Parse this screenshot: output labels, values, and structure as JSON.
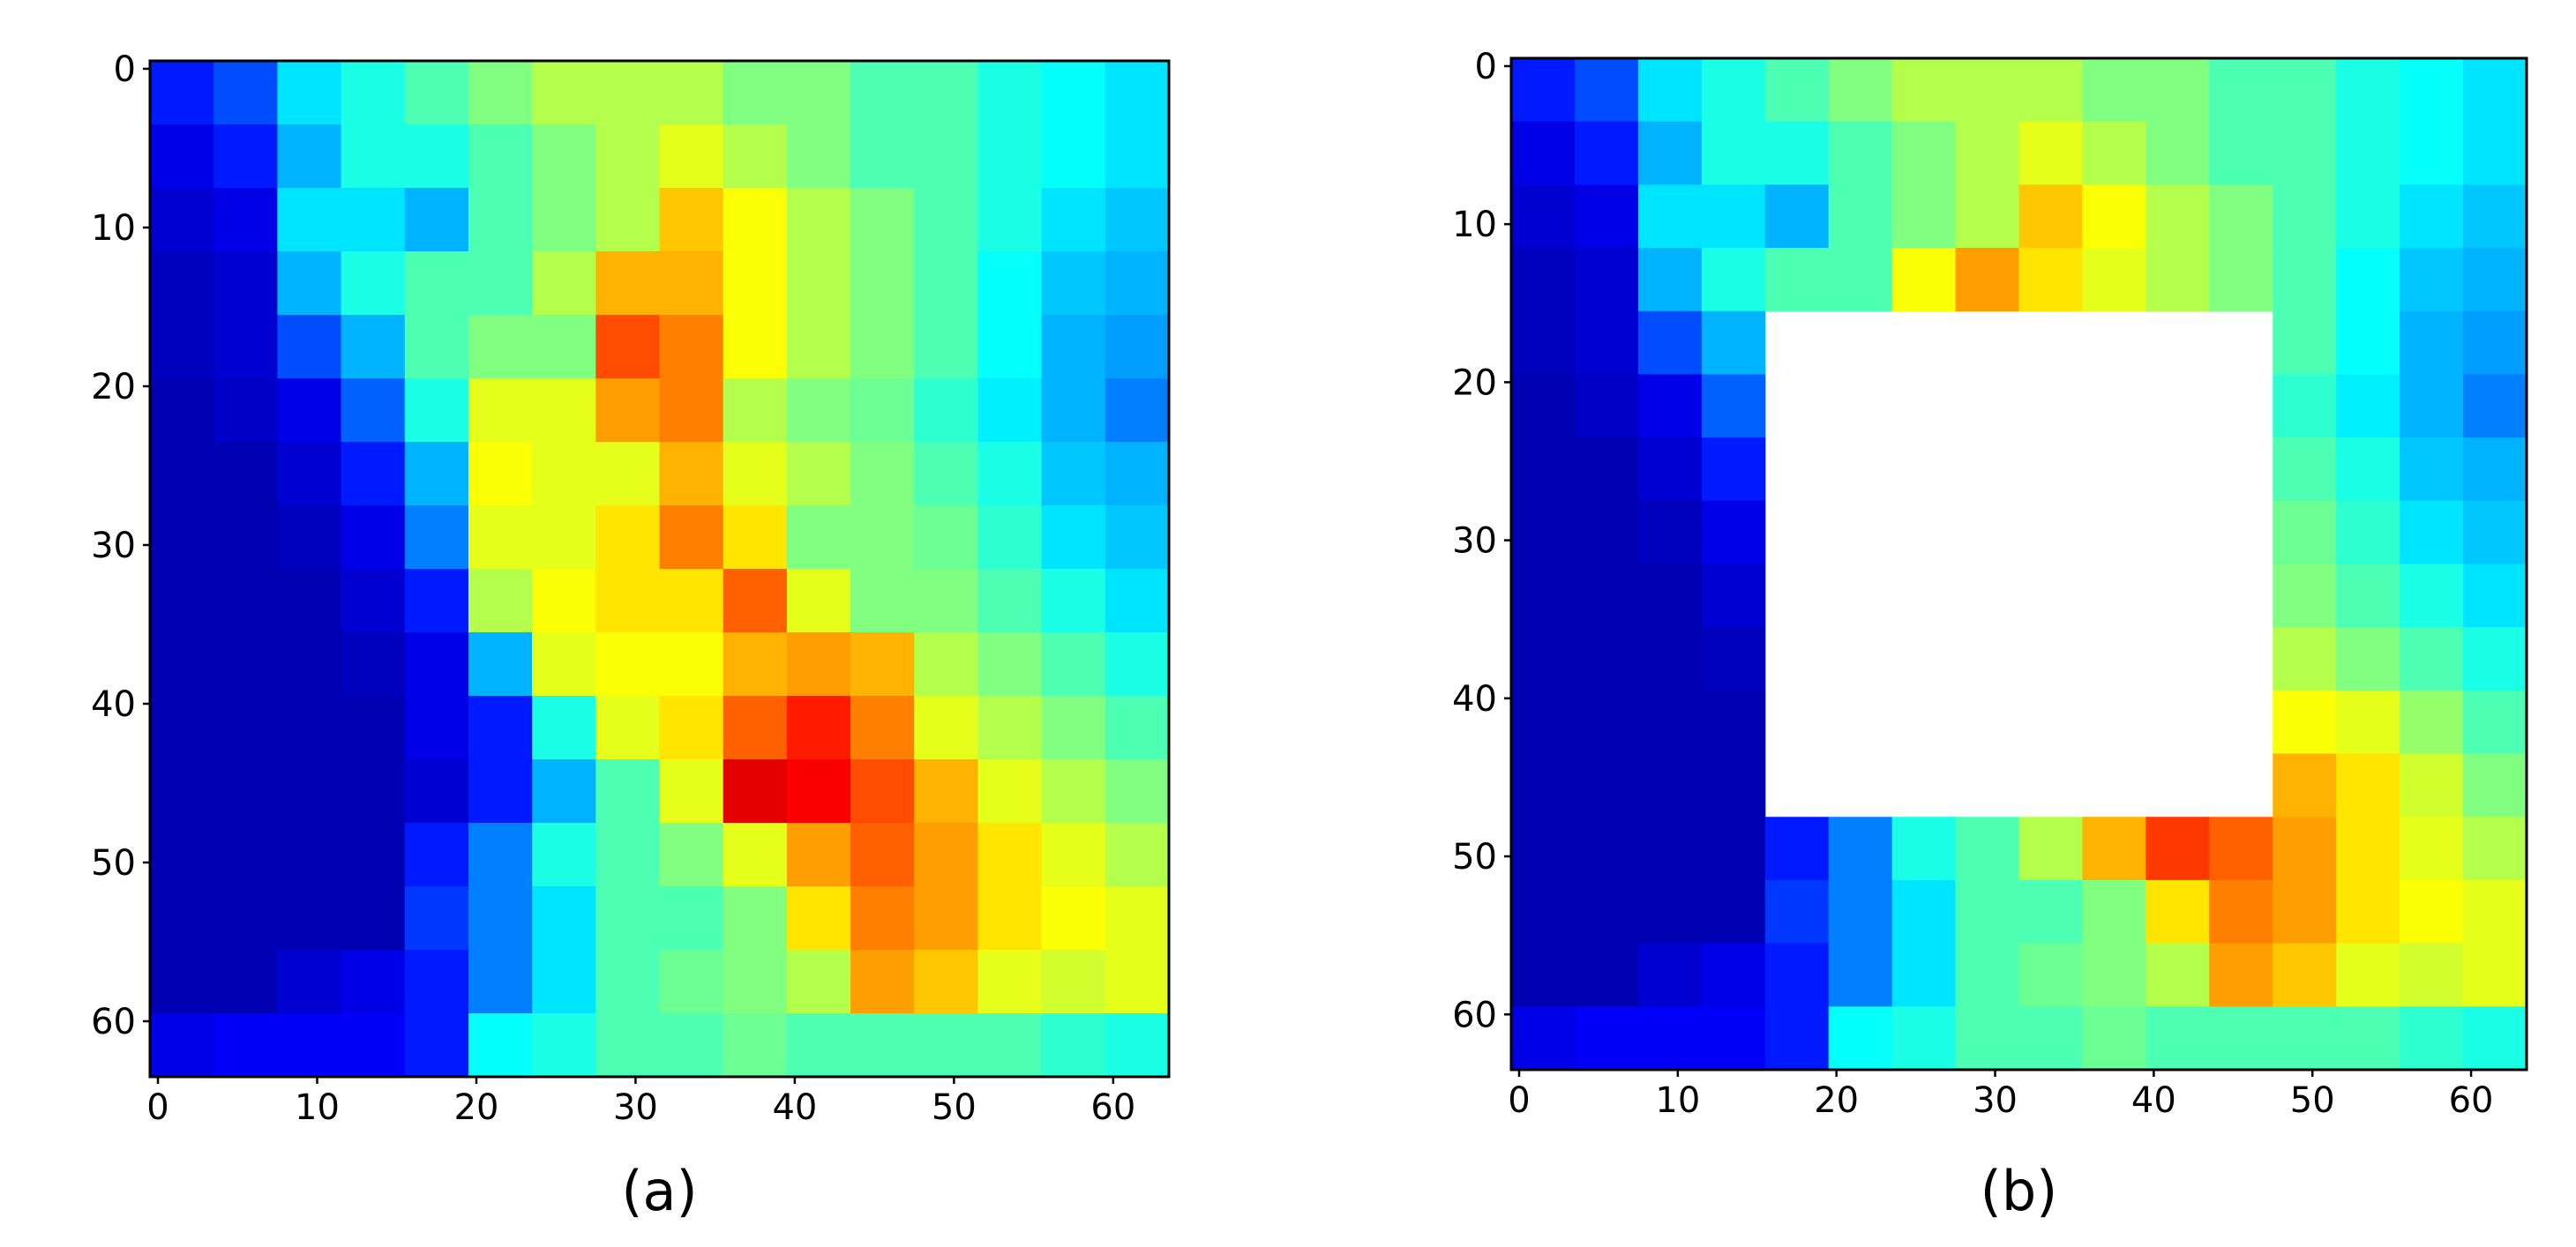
{
  "chart_data": [
    {
      "type": "heatmap",
      "xlabel": "(a)",
      "colormap": "jet",
      "xlim": [
        -0.5,
        63.5
      ],
      "ylim": [
        63.5,
        -0.5
      ],
      "xticks": [
        0,
        10,
        20,
        30,
        40,
        50,
        60
      ],
      "yticks": [
        0,
        10,
        20,
        30,
        40,
        50,
        60
      ],
      "values": [
        [
          0.15,
          0.2,
          0.35,
          0.4,
          0.45,
          0.5,
          0.55,
          0.55,
          0.55,
          0.5,
          0.5,
          0.45,
          0.45,
          0.4,
          0.38,
          0.35
        ],
        [
          0.1,
          0.15,
          0.3,
          0.4,
          0.4,
          0.45,
          0.5,
          0.55,
          0.6,
          0.55,
          0.5,
          0.45,
          0.45,
          0.4,
          0.38,
          0.35
        ],
        [
          0.08,
          0.1,
          0.35,
          0.35,
          0.3,
          0.45,
          0.5,
          0.55,
          0.68,
          0.62,
          0.55,
          0.5,
          0.45,
          0.4,
          0.35,
          0.32
        ],
        [
          0.06,
          0.08,
          0.3,
          0.4,
          0.45,
          0.45,
          0.55,
          0.7,
          0.7,
          0.62,
          0.55,
          0.5,
          0.45,
          0.38,
          0.32,
          0.3
        ],
        [
          0.06,
          0.08,
          0.2,
          0.3,
          0.45,
          0.5,
          0.5,
          0.8,
          0.75,
          0.62,
          0.55,
          0.5,
          0.45,
          0.38,
          0.3,
          0.28
        ],
        [
          0.05,
          0.07,
          0.1,
          0.22,
          0.4,
          0.6,
          0.6,
          0.72,
          0.75,
          0.55,
          0.5,
          0.48,
          0.42,
          0.36,
          0.3,
          0.25
        ],
        [
          0.05,
          0.05,
          0.08,
          0.15,
          0.3,
          0.62,
          0.6,
          0.6,
          0.7,
          0.6,
          0.55,
          0.5,
          0.45,
          0.4,
          0.32,
          0.3
        ],
        [
          0.05,
          0.05,
          0.06,
          0.1,
          0.25,
          0.6,
          0.6,
          0.65,
          0.75,
          0.65,
          0.5,
          0.5,
          0.48,
          0.42,
          0.35,
          0.32
        ],
        [
          0.05,
          0.05,
          0.05,
          0.08,
          0.15,
          0.55,
          0.62,
          0.65,
          0.65,
          0.78,
          0.6,
          0.5,
          0.5,
          0.45,
          0.4,
          0.35
        ],
        [
          0.05,
          0.05,
          0.05,
          0.06,
          0.1,
          0.3,
          0.6,
          0.62,
          0.62,
          0.7,
          0.72,
          0.7,
          0.55,
          0.5,
          0.45,
          0.4
        ],
        [
          0.05,
          0.05,
          0.05,
          0.05,
          0.1,
          0.15,
          0.4,
          0.6,
          0.65,
          0.78,
          0.85,
          0.75,
          0.6,
          0.55,
          0.5,
          0.45
        ],
        [
          0.05,
          0.05,
          0.05,
          0.05,
          0.08,
          0.15,
          0.3,
          0.45,
          0.6,
          0.9,
          0.88,
          0.8,
          0.7,
          0.6,
          0.55,
          0.5
        ],
        [
          0.05,
          0.05,
          0.05,
          0.05,
          0.15,
          0.25,
          0.4,
          0.45,
          0.5,
          0.6,
          0.72,
          0.78,
          0.72,
          0.65,
          0.6,
          0.55
        ],
        [
          0.05,
          0.05,
          0.05,
          0.05,
          0.18,
          0.25,
          0.35,
          0.45,
          0.45,
          0.5,
          0.65,
          0.75,
          0.72,
          0.65,
          0.62,
          0.6
        ],
        [
          0.05,
          0.05,
          0.08,
          0.1,
          0.15,
          0.25,
          0.35,
          0.45,
          0.48,
          0.5,
          0.55,
          0.72,
          0.68,
          0.6,
          0.58,
          0.6
        ],
        [
          0.1,
          0.12,
          0.12,
          0.12,
          0.15,
          0.38,
          0.4,
          0.45,
          0.45,
          0.48,
          0.45,
          0.45,
          0.45,
          0.45,
          0.42,
          0.4
        ]
      ]
    },
    {
      "type": "heatmap",
      "xlabel": "(b)",
      "colormap": "jet",
      "xlim": [
        -0.5,
        63.5
      ],
      "ylim": [
        63.5,
        -0.5
      ],
      "xticks": [
        0,
        10,
        20,
        30,
        40,
        50,
        60
      ],
      "yticks": [
        0,
        10,
        20,
        30,
        40,
        50,
        60
      ],
      "values": [
        [
          0.15,
          0.2,
          0.35,
          0.4,
          0.45,
          0.5,
          0.55,
          0.55,
          0.55,
          0.5,
          0.5,
          0.45,
          0.45,
          0.4,
          0.38,
          0.35
        ],
        [
          0.1,
          0.15,
          0.3,
          0.4,
          0.4,
          0.45,
          0.5,
          0.55,
          0.6,
          0.55,
          0.5,
          0.45,
          0.45,
          0.4,
          0.38,
          0.35
        ],
        [
          0.08,
          0.1,
          0.35,
          0.35,
          0.3,
          0.45,
          0.5,
          0.55,
          0.68,
          0.62,
          0.55,
          0.5,
          0.45,
          0.4,
          0.35,
          0.32
        ],
        [
          0.06,
          0.08,
          0.3,
          0.4,
          0.45,
          0.45,
          0.62,
          0.72,
          0.65,
          0.6,
          0.55,
          0.5,
          0.45,
          0.38,
          0.32,
          0.3
        ],
        [
          0.06,
          0.08,
          0.2,
          0.3,
          null,
          null,
          null,
          null,
          null,
          null,
          null,
          null,
          0.45,
          0.38,
          0.3,
          0.28
        ],
        [
          0.05,
          0.07,
          0.1,
          0.22,
          null,
          null,
          null,
          null,
          null,
          null,
          null,
          null,
          0.42,
          0.36,
          0.3,
          0.25
        ],
        [
          0.05,
          0.05,
          0.08,
          0.15,
          null,
          null,
          null,
          null,
          null,
          null,
          null,
          null,
          0.45,
          0.4,
          0.32,
          0.3
        ],
        [
          0.05,
          0.05,
          0.06,
          0.1,
          null,
          null,
          null,
          null,
          null,
          null,
          null,
          null,
          0.48,
          0.42,
          0.35,
          0.32
        ],
        [
          0.05,
          0.05,
          0.05,
          0.08,
          null,
          null,
          null,
          null,
          null,
          null,
          null,
          null,
          0.5,
          0.45,
          0.4,
          0.35
        ],
        [
          0.05,
          0.05,
          0.05,
          0.06,
          null,
          null,
          null,
          null,
          null,
          null,
          null,
          null,
          0.55,
          0.5,
          0.45,
          0.4
        ],
        [
          0.05,
          0.05,
          0.05,
          0.05,
          null,
          null,
          null,
          null,
          null,
          null,
          null,
          null,
          0.62,
          0.6,
          0.52,
          0.45
        ],
        [
          0.05,
          0.05,
          0.05,
          0.05,
          null,
          null,
          null,
          null,
          null,
          null,
          null,
          null,
          0.7,
          0.65,
          0.58,
          0.5
        ],
        [
          0.05,
          0.05,
          0.05,
          0.05,
          0.15,
          0.25,
          0.4,
          0.45,
          0.55,
          0.7,
          0.82,
          0.78,
          0.72,
          0.65,
          0.6,
          0.55
        ],
        [
          0.05,
          0.05,
          0.05,
          0.05,
          0.18,
          0.25,
          0.35,
          0.45,
          0.45,
          0.5,
          0.65,
          0.75,
          0.72,
          0.65,
          0.62,
          0.6
        ],
        [
          0.05,
          0.05,
          0.08,
          0.1,
          0.15,
          0.25,
          0.35,
          0.45,
          0.48,
          0.5,
          0.55,
          0.72,
          0.68,
          0.6,
          0.58,
          0.6
        ],
        [
          0.1,
          0.12,
          0.12,
          0.12,
          0.15,
          0.38,
          0.4,
          0.45,
          0.45,
          0.48,
          0.45,
          0.45,
          0.45,
          0.45,
          0.42,
          0.4
        ]
      ]
    }
  ]
}
